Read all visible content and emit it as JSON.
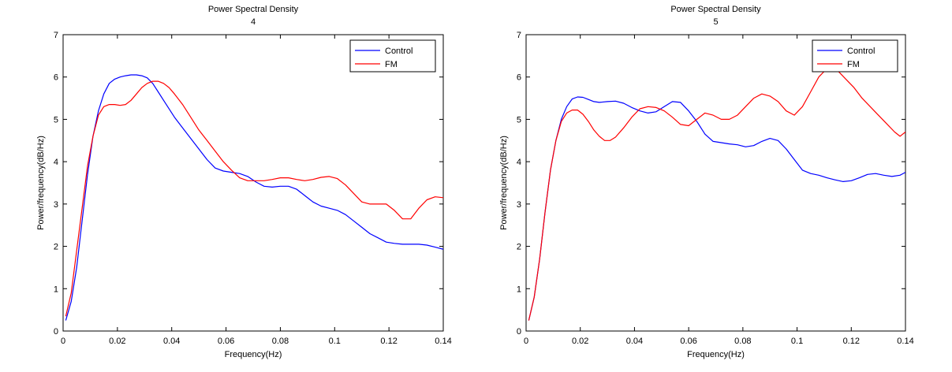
{
  "chart_data": [
    {
      "type": "line",
      "title": "Power Spectral Density",
      "subtitle": "4",
      "xlabel": "Frequency(Hz)",
      "ylabel": "Power/frequency(dB/Hz)",
      "xlim": [
        0,
        0.14
      ],
      "ylim": [
        0,
        7
      ],
      "xticks": [
        "0",
        "0.02",
        "0.04",
        "0.06",
        "0.08",
        "0.1",
        "0.12",
        "0.14"
      ],
      "yticks": [
        "0",
        "1",
        "2",
        "3",
        "4",
        "5",
        "6",
        "7"
      ],
      "grid": false,
      "legend_position": "top-right",
      "series": [
        {
          "name": "Control",
          "color": "#0000ff",
          "x": [
            0.001,
            0.003,
            0.005,
            0.007,
            0.009,
            0.011,
            0.013,
            0.015,
            0.017,
            0.019,
            0.021,
            0.023,
            0.025,
            0.027,
            0.029,
            0.031,
            0.033,
            0.035,
            0.038,
            0.041,
            0.044,
            0.047,
            0.05,
            0.053,
            0.056,
            0.059,
            0.062,
            0.065,
            0.068,
            0.071,
            0.074,
            0.077,
            0.08,
            0.083,
            0.086,
            0.089,
            0.092,
            0.095,
            0.098,
            0.101,
            0.104,
            0.107,
            0.11,
            0.113,
            0.116,
            0.119,
            0.122,
            0.125,
            0.128,
            0.131,
            0.134,
            0.137,
            0.14
          ],
          "y": [
            0.25,
            0.7,
            1.5,
            2.6,
            3.7,
            4.6,
            5.2,
            5.6,
            5.85,
            5.95,
            6.0,
            6.03,
            6.05,
            6.05,
            6.03,
            5.98,
            5.85,
            5.65,
            5.35,
            5.05,
            4.8,
            4.55,
            4.3,
            4.05,
            3.85,
            3.78,
            3.75,
            3.72,
            3.65,
            3.52,
            3.42,
            3.4,
            3.42,
            3.42,
            3.35,
            3.2,
            3.05,
            2.95,
            2.9,
            2.85,
            2.75,
            2.6,
            2.45,
            2.3,
            2.2,
            2.1,
            2.07,
            2.05,
            2.05,
            2.05,
            2.03,
            1.98,
            1.93
          ]
        },
        {
          "name": "FM",
          "color": "#ff0000",
          "x": [
            0.001,
            0.003,
            0.005,
            0.007,
            0.009,
            0.011,
            0.013,
            0.015,
            0.017,
            0.019,
            0.021,
            0.023,
            0.025,
            0.027,
            0.029,
            0.031,
            0.033,
            0.035,
            0.037,
            0.039,
            0.041,
            0.044,
            0.047,
            0.05,
            0.053,
            0.056,
            0.059,
            0.062,
            0.065,
            0.068,
            0.071,
            0.074,
            0.077,
            0.08,
            0.083,
            0.086,
            0.089,
            0.092,
            0.095,
            0.098,
            0.101,
            0.104,
            0.107,
            0.11,
            0.113,
            0.116,
            0.119,
            0.122,
            0.125,
            0.128,
            0.131,
            0.134,
            0.137,
            0.14
          ],
          "y": [
            0.35,
            0.9,
            1.9,
            2.9,
            3.9,
            4.6,
            5.1,
            5.3,
            5.35,
            5.35,
            5.33,
            5.35,
            5.45,
            5.6,
            5.75,
            5.85,
            5.9,
            5.9,
            5.85,
            5.75,
            5.6,
            5.35,
            5.05,
            4.75,
            4.5,
            4.25,
            4.0,
            3.8,
            3.62,
            3.55,
            3.55,
            3.55,
            3.58,
            3.62,
            3.62,
            3.58,
            3.55,
            3.58,
            3.63,
            3.65,
            3.6,
            3.45,
            3.25,
            3.05,
            3.0,
            3.0,
            3.0,
            2.85,
            2.65,
            2.65,
            2.9,
            3.1,
            3.17,
            3.15
          ]
        }
      ]
    },
    {
      "type": "line",
      "title": "Power Spectral Density",
      "subtitle": "5",
      "xlabel": "Frequency(Hz)",
      "ylabel": "Power/frequency(dB/Hz)",
      "xlim": [
        0,
        0.14
      ],
      "ylim": [
        0,
        7
      ],
      "xticks": [
        "0",
        "0.02",
        "0.04",
        "0.06",
        "0.08",
        "0.1",
        "0.12",
        "0.14"
      ],
      "yticks": [
        "0",
        "1",
        "2",
        "3",
        "4",
        "5",
        "6",
        "7"
      ],
      "grid": false,
      "legend_position": "top-right",
      "series": [
        {
          "name": "Control",
          "color": "#0000ff",
          "x": [
            0.001,
            0.003,
            0.005,
            0.007,
            0.009,
            0.011,
            0.013,
            0.015,
            0.017,
            0.019,
            0.021,
            0.023,
            0.025,
            0.027,
            0.03,
            0.033,
            0.036,
            0.039,
            0.042,
            0.045,
            0.048,
            0.051,
            0.054,
            0.057,
            0.06,
            0.063,
            0.066,
            0.069,
            0.072,
            0.075,
            0.078,
            0.081,
            0.084,
            0.087,
            0.09,
            0.093,
            0.096,
            0.099,
            0.102,
            0.105,
            0.108,
            0.111,
            0.114,
            0.117,
            0.12,
            0.123,
            0.126,
            0.129,
            0.132,
            0.135,
            0.138,
            0.14
          ],
          "y": [
            0.25,
            0.8,
            1.7,
            2.8,
            3.8,
            4.5,
            5.0,
            5.3,
            5.48,
            5.53,
            5.52,
            5.47,
            5.42,
            5.4,
            5.42,
            5.43,
            5.38,
            5.28,
            5.2,
            5.15,
            5.18,
            5.3,
            5.42,
            5.4,
            5.2,
            4.95,
            4.65,
            4.48,
            4.45,
            4.42,
            4.4,
            4.35,
            4.38,
            4.48,
            4.55,
            4.5,
            4.3,
            4.05,
            3.8,
            3.72,
            3.68,
            3.62,
            3.57,
            3.53,
            3.55,
            3.62,
            3.7,
            3.72,
            3.68,
            3.65,
            3.68,
            3.75
          ]
        },
        {
          "name": "FM",
          "color": "#ff0000",
          "x": [
            0.001,
            0.003,
            0.005,
            0.007,
            0.009,
            0.011,
            0.013,
            0.015,
            0.017,
            0.019,
            0.021,
            0.023,
            0.025,
            0.027,
            0.029,
            0.031,
            0.033,
            0.036,
            0.039,
            0.042,
            0.045,
            0.048,
            0.051,
            0.054,
            0.057,
            0.06,
            0.063,
            0.066,
            0.069,
            0.072,
            0.075,
            0.078,
            0.081,
            0.084,
            0.087,
            0.09,
            0.093,
            0.096,
            0.099,
            0.102,
            0.105,
            0.108,
            0.111,
            0.113,
            0.115,
            0.118,
            0.121,
            0.124,
            0.127,
            0.13,
            0.133,
            0.136,
            0.138,
            0.14
          ],
          "y": [
            0.25,
            0.8,
            1.7,
            2.8,
            3.8,
            4.5,
            4.95,
            5.15,
            5.22,
            5.22,
            5.12,
            4.95,
            4.75,
            4.6,
            4.5,
            4.5,
            4.58,
            4.8,
            5.05,
            5.25,
            5.3,
            5.28,
            5.2,
            5.05,
            4.88,
            4.85,
            5.0,
            5.15,
            5.1,
            5.0,
            5.0,
            5.1,
            5.3,
            5.5,
            5.6,
            5.55,
            5.42,
            5.2,
            5.1,
            5.3,
            5.65,
            6.0,
            6.2,
            6.3,
            6.15,
            5.95,
            5.75,
            5.5,
            5.3,
            5.1,
            4.9,
            4.7,
            4.6,
            4.7
          ]
        }
      ]
    }
  ]
}
